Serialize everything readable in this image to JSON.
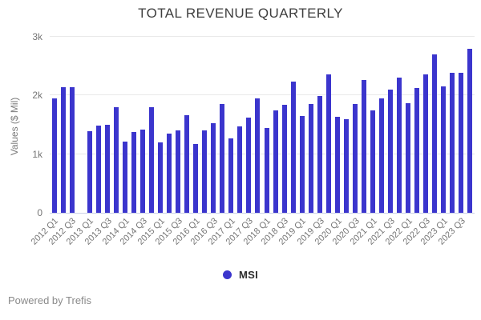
{
  "footer": {
    "text": "Powered by Trefis"
  },
  "chart_data": {
    "type": "bar",
    "title": "TOTAL REVENUE QUARTERLY",
    "ylabel": "Values ($ Mil)",
    "series_name": "MSI",
    "bar_color": "#3b35cd",
    "ylim": [
      0,
      3000
    ],
    "grid": true,
    "legend_position": "bottom",
    "yticks": [
      {
        "label": "0",
        "value": 0
      },
      {
        "label": "1k",
        "value": 1000
      },
      {
        "label": "2k",
        "value": 2000
      },
      {
        "label": "3k",
        "value": 3000
      }
    ],
    "categories": [
      "2012 Q1",
      "2012 Q2",
      "2012 Q3",
      "2012 Q4",
      "2013 Q1",
      "2013 Q2",
      "2013 Q3",
      "2013 Q4",
      "2014 Q1",
      "2014 Q2",
      "2014 Q3",
      "2014 Q4",
      "2015 Q1",
      "2015 Q2",
      "2015 Q3",
      "2015 Q4",
      "2016 Q1",
      "2016 Q2",
      "2016 Q3",
      "2016 Q4",
      "2017 Q1",
      "2017 Q2",
      "2017 Q3",
      "2017 Q4",
      "2018 Q1",
      "2018 Q2",
      "2018 Q3",
      "2018 Q4",
      "2019 Q1",
      "2019 Q2",
      "2019 Q3",
      "2019 Q4",
      "2020 Q1",
      "2020 Q2",
      "2020 Q3",
      "2020 Q4",
      "2021 Q1",
      "2021 Q2",
      "2021 Q3",
      "2021 Q4",
      "2022 Q1",
      "2022 Q2",
      "2022 Q3",
      "2022 Q4",
      "2023 Q1",
      "2023 Q2",
      "2023 Q3",
      "2023 Q4"
    ],
    "values": [
      1950,
      2145,
      2145,
      null,
      1385,
      1480,
      1505,
      1805,
      1220,
      1380,
      1425,
      1805,
      1195,
      1355,
      1405,
      1665,
      1175,
      1410,
      1525,
      1860,
      1265,
      1470,
      1620,
      1945,
      1450,
      1740,
      1845,
      2240,
      1645,
      1850,
      1985,
      2360,
      1640,
      1600,
      1855,
      2260,
      1750,
      1955,
      2100,
      2300,
      1875,
      2125,
      2360,
      2700,
      2150,
      2385,
      2385,
      2795
    ],
    "x_tick_labels": [
      "2012 Q1",
      "2012 Q3",
      "2013 Q1",
      "2013 Q3",
      "2014 Q1",
      "2014 Q3",
      "2015 Q1",
      "2015 Q3",
      "2016 Q1",
      "2016 Q3",
      "2017 Q1",
      "2017 Q3",
      "2018 Q1",
      "2018 Q3",
      "2019 Q1",
      "2019 Q3",
      "2020 Q1",
      "2020 Q3",
      "2021 Q1",
      "2021 Q3",
      "2022 Q1",
      "2022 Q3",
      "2023 Q1",
      "2023 Q3"
    ]
  }
}
